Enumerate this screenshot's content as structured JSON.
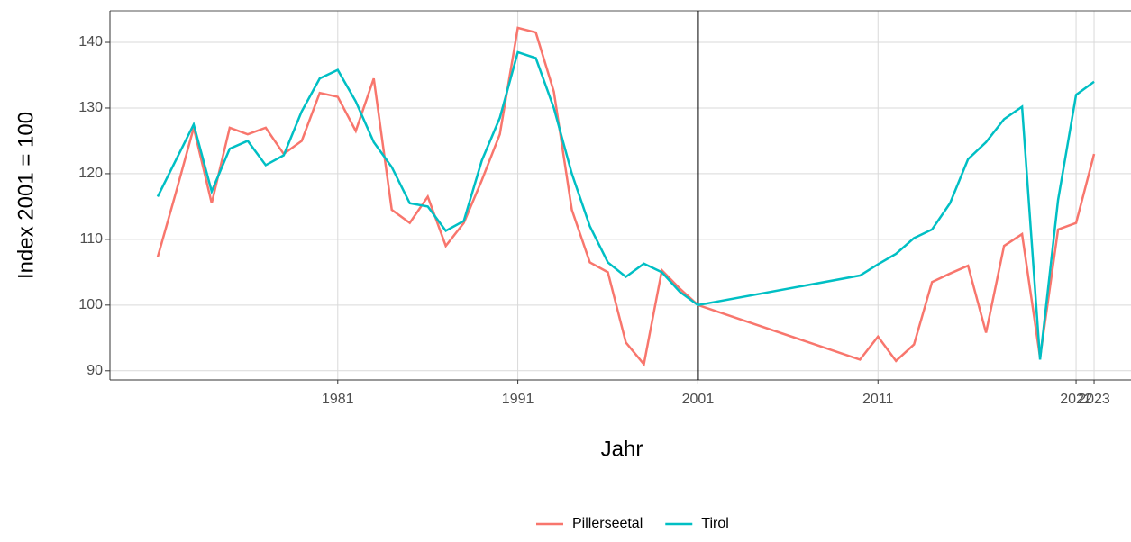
{
  "chart_data": {
    "type": "line",
    "xlabel": "Jahr",
    "ylabel": "Index 2001 = 100",
    "x": [
      1971,
      1972,
      1973,
      1974,
      1975,
      1976,
      1977,
      1978,
      1979,
      1980,
      1981,
      1982,
      1983,
      1984,
      1985,
      1986,
      1987,
      1988,
      1989,
      1990,
      1991,
      1992,
      1993,
      1994,
      1995,
      1996,
      1997,
      1998,
      1999,
      2000,
      2001,
      2010,
      2011,
      2012,
      2013,
      2014,
      2015,
      2016,
      2017,
      2018,
      2019,
      2020,
      2021,
      2022,
      2023
    ],
    "series": [
      {
        "name": "Pillerseetal",
        "color": "#f8766d",
        "values": [
          107.3,
          117,
          127,
          115.5,
          127,
          126,
          127,
          123,
          125,
          132.3,
          131.7,
          126.5,
          134.5,
          114.5,
          112.5,
          116.5,
          109,
          112.5,
          119,
          126,
          142.2,
          141.5,
          132.5,
          114.5,
          106.5,
          105,
          94.3,
          91,
          105.3,
          102.5,
          100,
          91.7,
          95.2,
          91.5,
          94,
          103.5,
          104.8,
          106,
          95.8,
          109,
          110.8,
          92,
          111.5,
          112.5,
          123
        ]
      },
      {
        "name": "Tirol",
        "color": "#00bfc4",
        "values": [
          116.5,
          122,
          127.5,
          117.3,
          123.8,
          125,
          121.3,
          122.8,
          129.5,
          134.5,
          135.8,
          131,
          124.8,
          121,
          115.5,
          115,
          111.3,
          112.8,
          122,
          128.5,
          138.5,
          137.6,
          130,
          120,
          112,
          106.5,
          104.3,
          106.3,
          105,
          102,
          100,
          104.5,
          106.2,
          107.8,
          110.2,
          111.5,
          115.5,
          122.2,
          124.8,
          128.3,
          130.2,
          91.7,
          116,
          132,
          134
        ]
      }
    ],
    "xlim": [
      1968.35,
      2025.05
    ],
    "xticks": [
      1981,
      1991,
      2001,
      2011,
      2022,
      2023
    ],
    "ylim": [
      88.6,
      144.8
    ],
    "yticks": [
      90,
      100,
      110,
      120,
      130,
      140
    ],
    "vline": 2001,
    "grid": true,
    "legend": "bottom"
  }
}
